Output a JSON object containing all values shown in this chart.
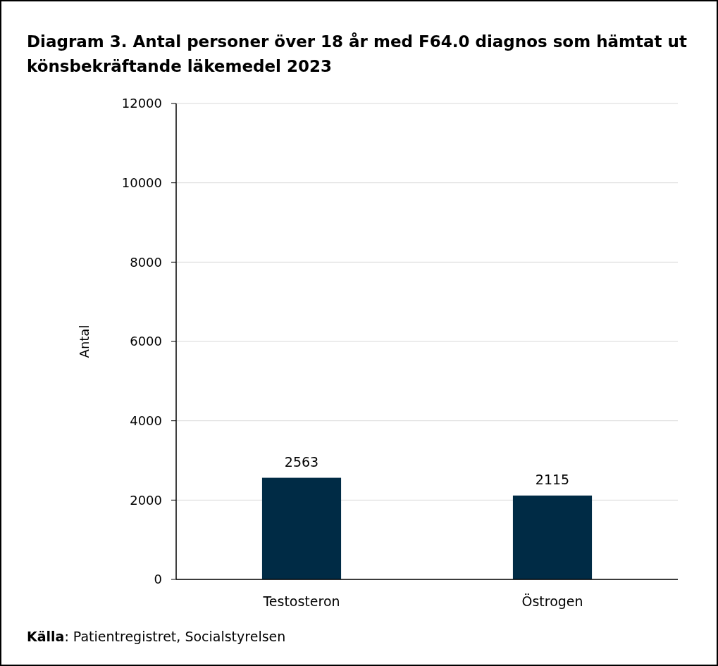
{
  "chart_data": {
    "type": "bar",
    "title": "Diagram 3. Antal personer över 18 år med F64.0 diagnos som hämtat ut könsbekräftande läkemedel 2023",
    "ylabel": "Antal",
    "categories": [
      "Testosteron",
      "Östrogen"
    ],
    "series": [
      {
        "color": "#002b45",
        "values": [
          2563,
          2115
        ]
      }
    ],
    "ylim": [
      0,
      12000
    ],
    "yticks": [
      0,
      2000,
      4000,
      6000,
      8000,
      10000,
      12000
    ],
    "grid": "y",
    "data_labels": true,
    "annotations": [
      "Källa: Patientregistret, Socialstyrelsen"
    ]
  }
}
